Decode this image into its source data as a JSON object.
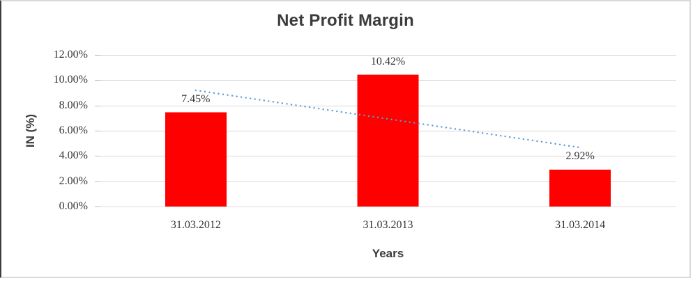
{
  "window": {
    "background": "#ffffff",
    "frame_border_color": "#d9d9d9",
    "frame_left_edge_color": "#3f3f3f"
  },
  "chart_data": {
    "type": "bar",
    "title": "Net Profit Margin",
    "xlabel": "Years",
    "ylabel": "IN (%)",
    "categories": [
      "31.03.2012",
      "31.03.2013",
      "31.03.2014"
    ],
    "series": [
      {
        "name": "Net Profit Margin",
        "values": [
          7.45,
          10.42,
          2.92
        ],
        "color": "#ff0000"
      }
    ],
    "data_labels": [
      "7.45%",
      "10.42%",
      "2.92%"
    ],
    "y_tick_labels": [
      "0.00%",
      "2.00%",
      "4.00%",
      "6.00%",
      "8.00%",
      "10.00%",
      "12.00%"
    ],
    "y_tick_values": [
      0,
      2,
      4,
      6,
      8,
      10,
      12
    ],
    "ylim": [
      0,
      12
    ],
    "grid": true,
    "legend_position": "none",
    "gridline_color": "#d9d9d9",
    "tick_color": "#bfbfbf",
    "text_color": "#363636",
    "trendline": {
      "type": "linear",
      "style": "dotted",
      "color": "#5b9bd5",
      "start_value": 9.2,
      "end_value": 4.67
    }
  }
}
